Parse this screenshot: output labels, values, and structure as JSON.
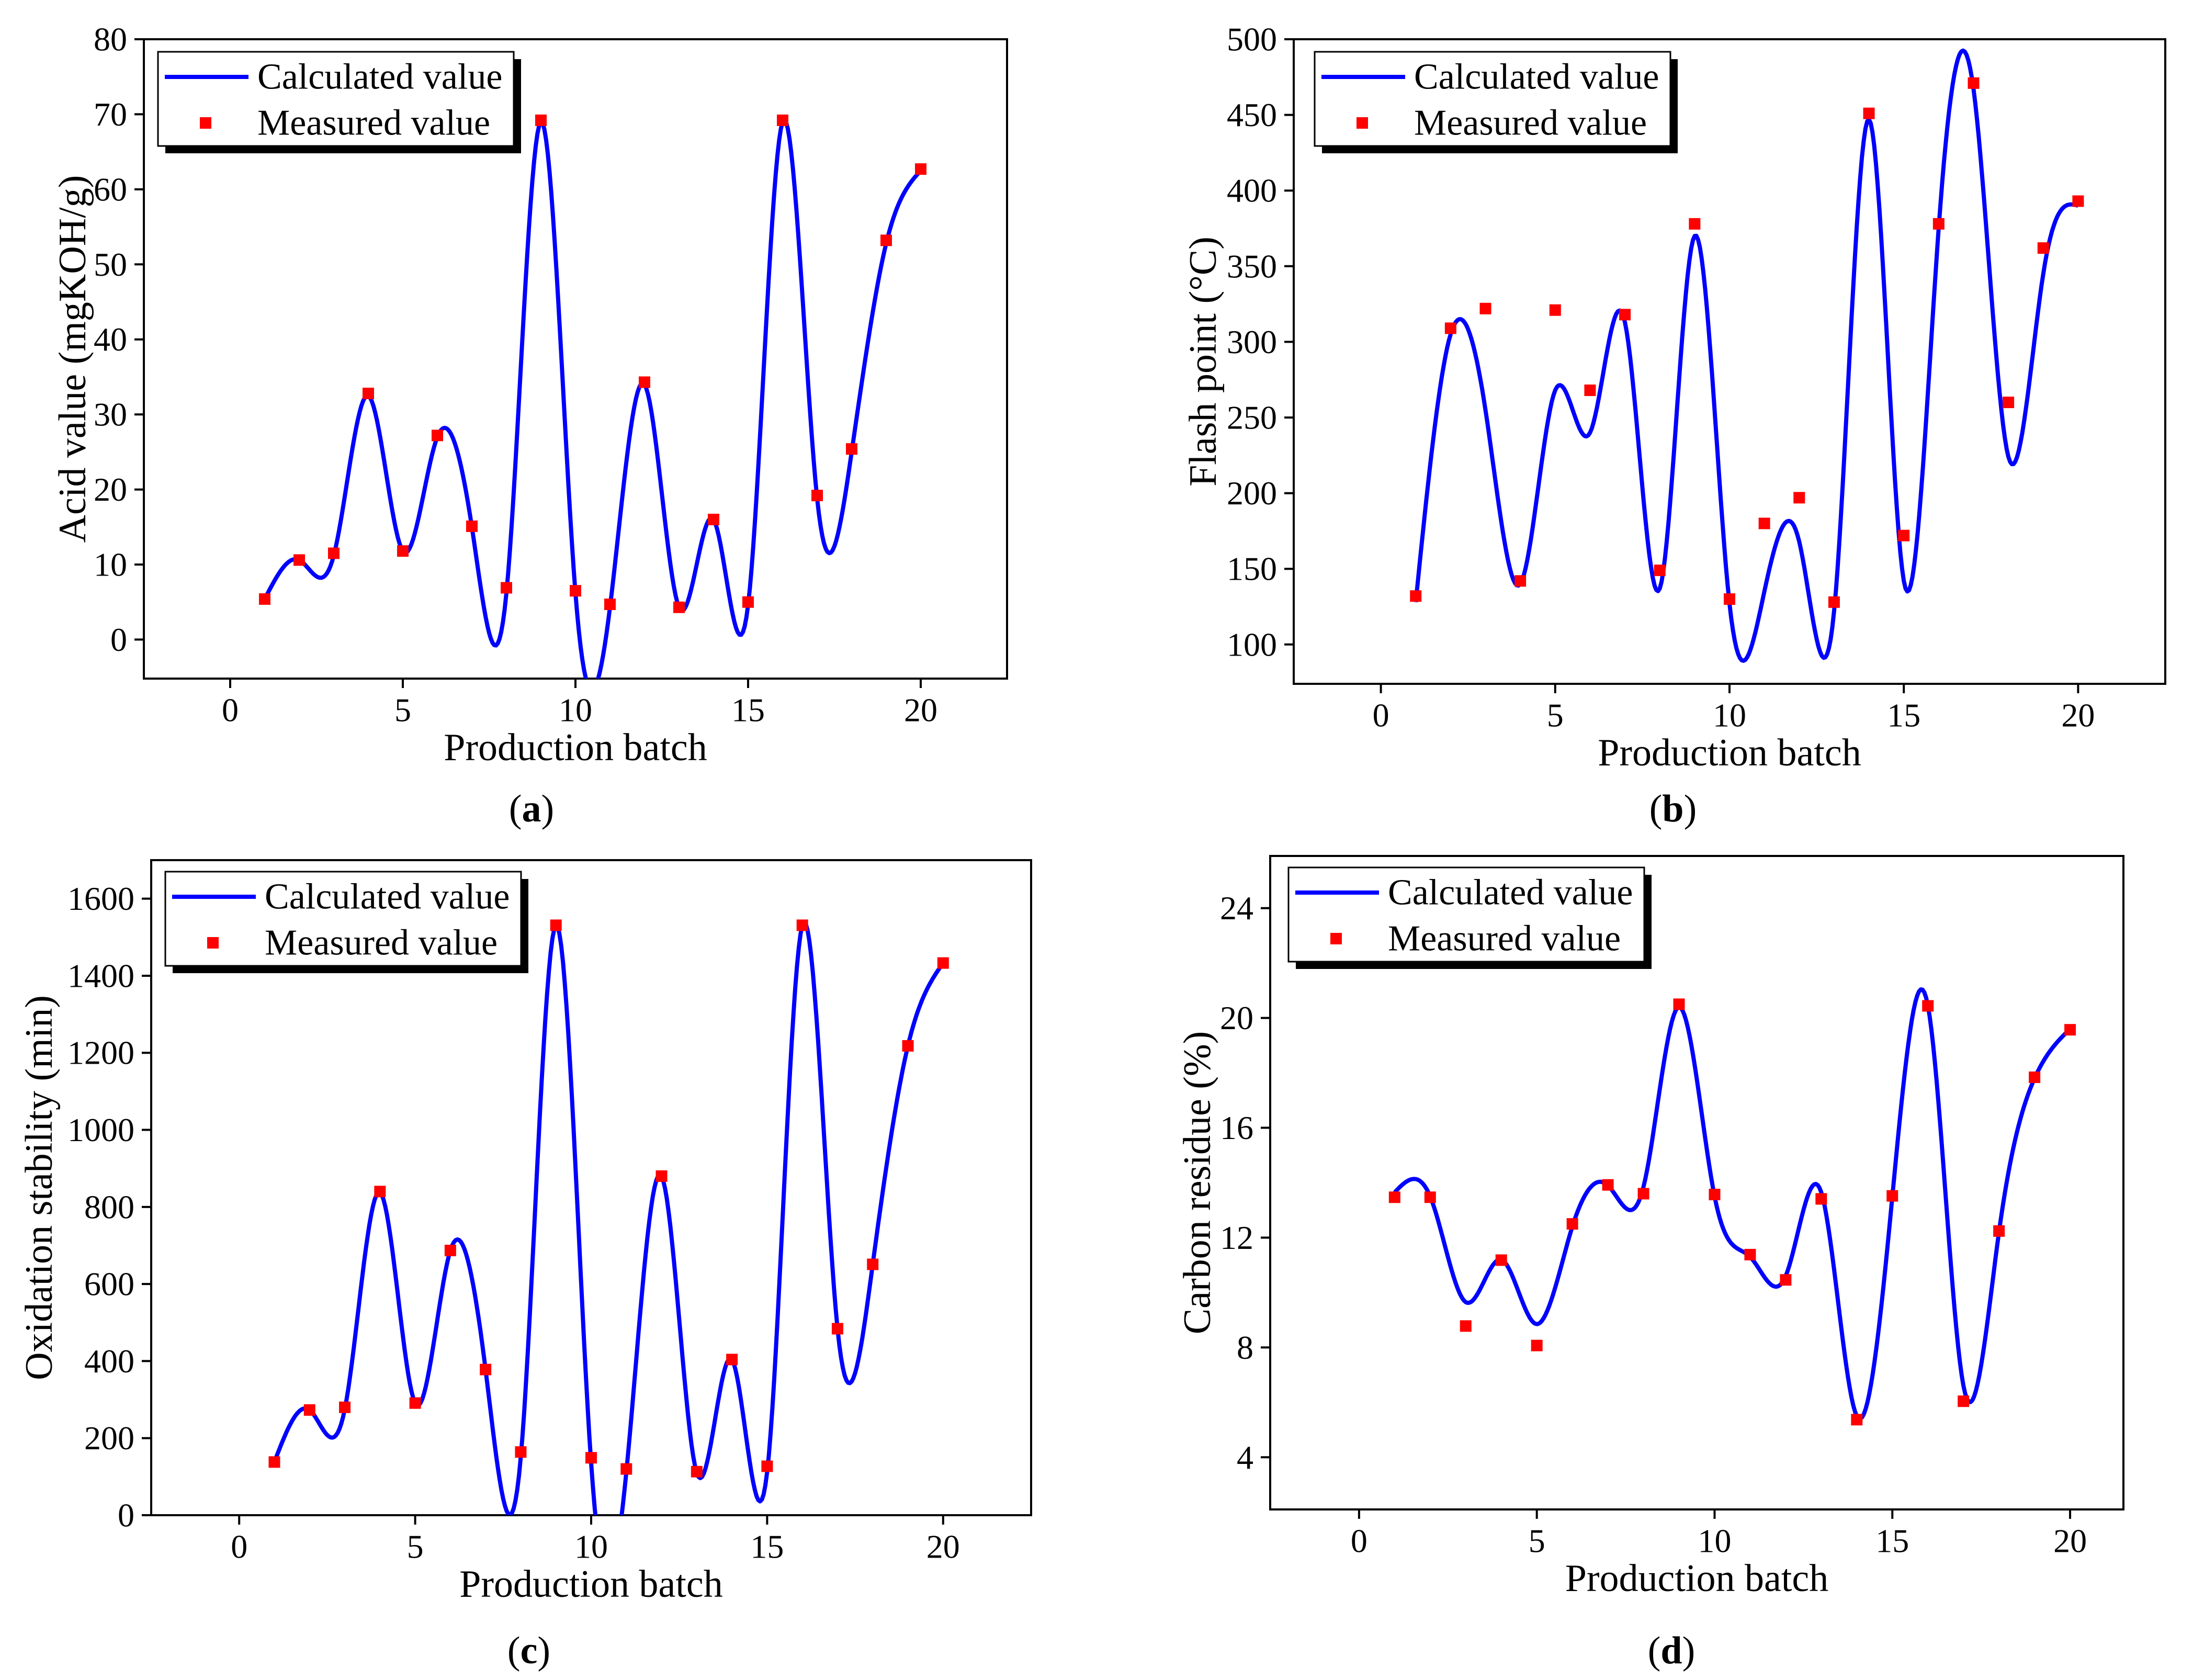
{
  "chart_data": [
    {
      "type": "line",
      "panel_label": "(a)",
      "xlabel": "Production batch",
      "ylabel": "Acid value (mgKOH/g)",
      "xlim": [
        -2.5,
        22.5
      ],
      "ylim": [
        -5.2,
        80
      ],
      "xticks": [
        0,
        5,
        10,
        15,
        20
      ],
      "yticks": [
        0,
        10,
        20,
        30,
        40,
        50,
        60,
        70,
        80
      ],
      "legend": "top-left",
      "x": [
        1,
        2,
        3,
        4,
        5,
        6,
        7,
        8,
        9,
        10,
        11,
        12,
        13,
        14,
        15,
        16,
        17,
        18,
        19,
        20
      ],
      "series": [
        {
          "name": "Calculated value",
          "color": "#0000ff",
          "values": [
            5.4,
            10.6,
            11.2,
            32.5,
            11.8,
            27.0,
            15.0,
            6.2,
            69.0,
            6.2,
            4.3,
            34.0,
            4.3,
            16.0,
            4.6,
            69.0,
            18.8,
            25.0,
            52.8,
            62.5
          ]
        },
        {
          "name": "Measured value",
          "color": "#ff0000",
          "values": [
            5.4,
            10.6,
            11.5,
            32.8,
            11.8,
            27.2,
            15.1,
            6.9,
            69.2,
            6.5,
            4.7,
            34.3,
            4.3,
            16.0,
            5.0,
            69.2,
            19.2,
            25.4,
            53.2,
            62.7
          ]
        }
      ]
    },
    {
      "type": "line",
      "panel_label": "(b)",
      "xlabel": "Production batch",
      "ylabel": "Flash point (°C)",
      "xlim": [
        -2.5,
        22.5
      ],
      "ylim": [
        74,
        500
      ],
      "xticks": [
        0,
        5,
        10,
        15,
        20
      ],
      "yticks": [
        100,
        150,
        200,
        250,
        300,
        350,
        400,
        450,
        500
      ],
      "legend": "top-left",
      "x": [
        1,
        2,
        3,
        4,
        5,
        6,
        7,
        8,
        9,
        10,
        11,
        12,
        13,
        14,
        15,
        16,
        17,
        18,
        19,
        20
      ],
      "series": [
        {
          "name": "Calculated value",
          "color": "#0000ff",
          "values": [
            128,
            305,
            255,
            140,
            268,
            240,
            313,
            137,
            370,
            127,
            135,
            168,
            122,
            447,
            142,
            375,
            467,
            224,
            345,
            390
          ]
        },
        {
          "name": "Measured value",
          "color": "#ff0000",
          "values": [
            132,
            309,
            322,
            142,
            321,
            268,
            318,
            149,
            378,
            130,
            180,
            197,
            128,
            451,
            172,
            378,
            471,
            260,
            362,
            393
          ]
        }
      ]
    },
    {
      "type": "line",
      "panel_label": "(c)",
      "xlabel": "Production batch",
      "ylabel": "Oxidation stability (min)",
      "xlim": [
        -2.5,
        22.5
      ],
      "ylim": [
        0,
        1700
      ],
      "xticks": [
        0,
        5,
        10,
        15,
        20
      ],
      "yticks": [
        0,
        200,
        400,
        600,
        800,
        1000,
        1200,
        1400,
        1600
      ],
      "legend": "top-left",
      "x": [
        1,
        2,
        3,
        4,
        5,
        6,
        7,
        8,
        9,
        10,
        11,
        12,
        13,
        14,
        15,
        16,
        17,
        18,
        19,
        20
      ],
      "series": [
        {
          "name": "Calculated value",
          "color": "#0000ff",
          "values": [
            138,
            273,
            275,
            838,
            291,
            687,
            378,
            150,
            1531,
            135,
            112,
            880,
            110,
            404,
            112,
            1531,
            484,
            651,
            1218,
            1433
          ]
        },
        {
          "name": "Measured value",
          "color": "#ff0000",
          "values": [
            138,
            273,
            280,
            840,
            291,
            687,
            378,
            164,
            1531,
            149,
            120,
            880,
            113,
            404,
            127,
            1531,
            484,
            651,
            1218,
            1433
          ]
        }
      ]
    },
    {
      "type": "line",
      "panel_label": "(d)",
      "xlabel": "Production batch",
      "ylabel": "Carbon residue (%)",
      "xlim": [
        -2.5,
        21.5
      ],
      "ylim": [
        2.1,
        25.9
      ],
      "xticks": [
        0,
        5,
        10,
        15,
        20
      ],
      "yticks": [
        4,
        8,
        12,
        16,
        20,
        24
      ],
      "legend": "top-left",
      "x": [
        1,
        2,
        3,
        4,
        5,
        6,
        7,
        8,
        9,
        10,
        11,
        12,
        13,
        14,
        15,
        16,
        17,
        18,
        19,
        20
      ],
      "series": [
        {
          "name": "Calculated value",
          "color": "#0000ff",
          "values": [
            13.65,
            13.5,
            9.65,
            11.2,
            8.85,
            12.4,
            13.9,
            13.85,
            20.4,
            13.5,
            11.3,
            10.6,
            13.65,
            5.5,
            13.5,
            20.45,
            6.6,
            12.2,
            17.8,
            19.6
          ]
        },
        {
          "name": "Measured value",
          "color": "#ff0000",
          "values": [
            13.47,
            13.47,
            8.78,
            11.18,
            8.07,
            12.5,
            13.92,
            13.6,
            20.5,
            13.57,
            11.38,
            10.46,
            13.41,
            5.37,
            13.52,
            20.44,
            6.04,
            12.24,
            17.84,
            19.57
          ]
        }
      ]
    }
  ]
}
